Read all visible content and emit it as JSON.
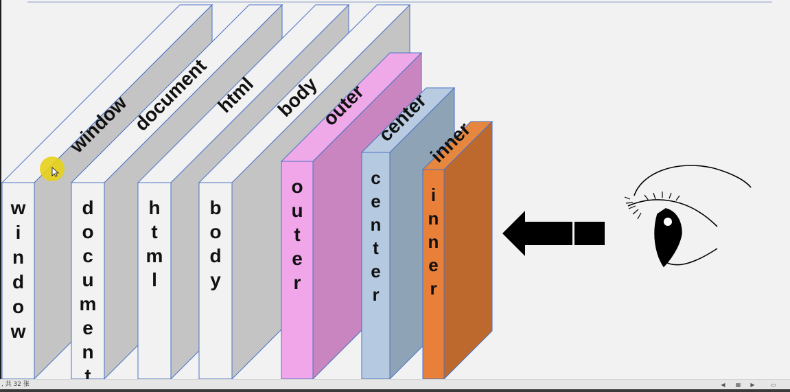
{
  "layers": [
    {
      "name": "window",
      "front": "#f2f2f2",
      "side": "#c4c4c4",
      "top": "#f2f2f2",
      "text": "#111111"
    },
    {
      "name": "document",
      "front": "#f2f2f2",
      "side": "#c4c4c4",
      "top": "#f2f2f2",
      "text": "#111111"
    },
    {
      "name": "html",
      "front": "#f2f2f2",
      "side": "#c4c4c4",
      "top": "#f2f2f2",
      "text": "#111111"
    },
    {
      "name": "body",
      "front": "#f2f2f2",
      "side": "#c4c4c4",
      "top": "#f2f2f2",
      "text": "#111111"
    },
    {
      "name": "outer",
      "front": "#f1a6ea",
      "side": "#c885bf",
      "top": "#efa9e8",
      "text": "#111111"
    },
    {
      "name": "center",
      "front": "#b5c9e0",
      "side": "#8fa3b7",
      "top": "#b8cbe1",
      "text": "#111111"
    },
    {
      "name": "inner",
      "front": "#e8803a",
      "side": "#bd692d",
      "top": "#e6873f",
      "text": "#111111"
    }
  ],
  "arrow": {
    "color": "#000000"
  },
  "eye": {
    "stroke": "#000000"
  },
  "cursor": {
    "highlight": "#e8d21a"
  },
  "status": {
    "slide_count": ", 共 32 张"
  },
  "colors": {
    "outline": "#4a72c4",
    "stage": "#f2f2f2"
  }
}
